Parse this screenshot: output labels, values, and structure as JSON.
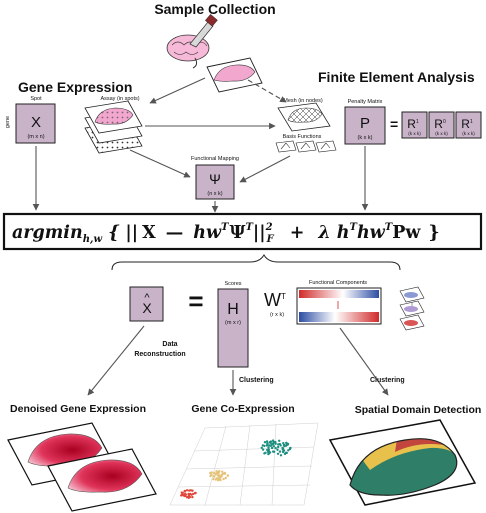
{
  "headings": {
    "sample_collection": "Sample Collection",
    "gene_expression": "Gene Expression",
    "finite_element_analysis": "Finite Element Analysis",
    "denoised": "Denoised Gene Expression",
    "coexpression": "Gene Co-Expression",
    "spatial_domain": "Spatial Domain Detection"
  },
  "spot_box": {
    "caption": "Spot",
    "side_label": "gene",
    "symbol": "X",
    "dims": "(m x n)"
  },
  "assay_label": "Assay (in spots)",
  "mesh_label": "Mesh (in nodes)",
  "basis_label": "Basis Functions",
  "functional_mapping": {
    "caption": "Functional Mapping",
    "symbol": "Ψ",
    "dims": "(n x k)"
  },
  "penalty": {
    "caption": "Penalty Matrix",
    "symbol": "P",
    "dims": "(k x k)",
    "equals": "=",
    "r_boxes": [
      {
        "symbol": "R",
        "sub": "1",
        "dims": "(k x k)"
      },
      {
        "symbol": "R",
        "sub": "0",
        "dims": "(k x k)"
      },
      {
        "symbol": "R",
        "sub": "1",
        "dims": "(k x k)"
      }
    ]
  },
  "formula": {
    "argmin": "argmin",
    "argmin_sub": "h,w",
    "open": "{ ||",
    "X": "X",
    "minus": "—",
    "hw": "hw",
    "T1": "T",
    "psi": "Ψ",
    "T2": "T",
    "norm_close": "||",
    "norm_sup": "2",
    "norm_sub": "F",
    "plus": "+",
    "lambda_h": "λ h",
    "T3": "T",
    "hw2": "hw",
    "T4": "T",
    "Pw": "Pw",
    "close": "}"
  },
  "xhat": {
    "hat": "^",
    "symbol": "X"
  },
  "equals_sign": "=",
  "scores": {
    "caption": "Scores",
    "symbol": "H",
    "dims": "(m x r)"
  },
  "wt": {
    "symbol": "W",
    "sup": "T",
    "dims": "(r x k)"
  },
  "functional_components_label": "Functional Components",
  "edge_labels": {
    "data_reconstruction_1": "Data",
    "data_reconstruction_2": "Reconstruction",
    "clustering_left": "Clustering",
    "clustering_right": "Clustering"
  },
  "colors": {
    "box_fill": "#c9b3c9",
    "tissue_pink": "#f2a7cf",
    "denoise_red": "#c8123a",
    "domain_green": "#2f7f68",
    "domain_yellow": "#e7c14c",
    "domain_red": "#c2463e",
    "cluster_teal": "#1e8e80",
    "cluster_yellow": "#e6c37a",
    "cluster_red": "#e0473a",
    "fc_red": "#d12a2a",
    "fc_blue": "#2c4da3"
  },
  "icons": [
    "brain-icon",
    "knife-icon",
    "tissue-slice-icon",
    "mesh-icon",
    "scatter-plot-icon"
  ]
}
